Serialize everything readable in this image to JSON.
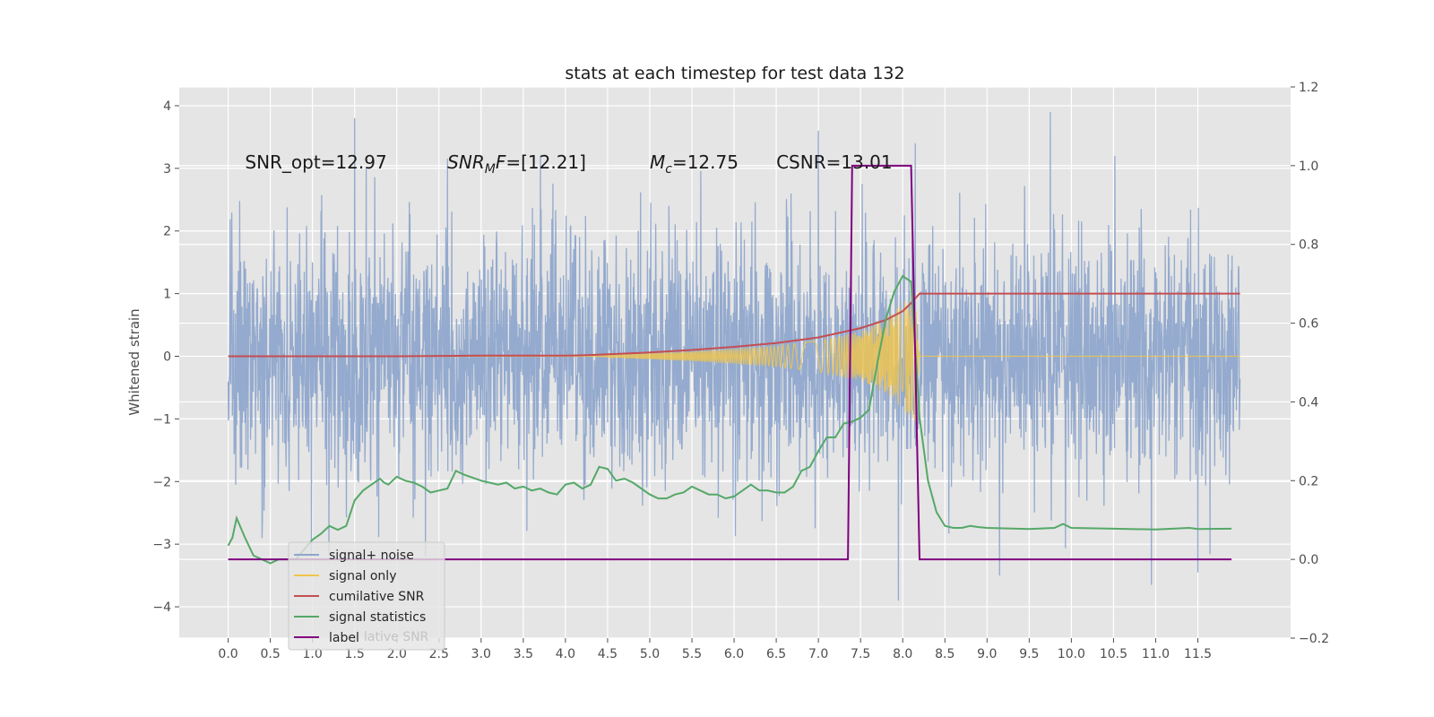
{
  "chart_data": {
    "type": "line",
    "title": "stats at each timestep for test data 132",
    "ylabel_left": "Whitened strain",
    "xlim": [
      -0.58,
      12.6
    ],
    "ylim_left": [
      -4.5,
      4.3
    ],
    "ylim_right": [
      -0.2,
      1.2
    ],
    "grid": true,
    "x_ticks": [
      0.0,
      0.5,
      1.0,
      1.5,
      2.0,
      2.5,
      3.0,
      3.5,
      4.0,
      4.5,
      5.0,
      5.5,
      6.0,
      6.5,
      7.0,
      7.5,
      8.0,
      8.5,
      9.0,
      9.5,
      10.0,
      10.5,
      11.0,
      11.5
    ],
    "x_tick_labels": [
      "0.0",
      "0.5",
      "1.0",
      "1.5",
      "2.0",
      "2.5",
      "3.0",
      "3.5",
      "4.0",
      "4.5",
      "5.0",
      "5.5",
      "6.0",
      "6.5",
      "7.0",
      "7.5",
      "8.0",
      "8.5",
      "9.0",
      "9.5",
      "10.0",
      "10.5",
      "11.0",
      "11.5"
    ],
    "y_left_ticks": [
      -4,
      -3,
      -2,
      -1,
      0,
      1,
      2,
      3,
      4
    ],
    "y_left_tick_labels": [
      "−4",
      "−3",
      "−2",
      "−1",
      "0",
      "1",
      "2",
      "3",
      "4"
    ],
    "y_right_ticks": [
      -0.2,
      0.0,
      0.2,
      0.4,
      0.6,
      0.8,
      1.0,
      1.2
    ],
    "y_right_tick_labels": [
      "−0.2",
      "0.0",
      "0.2",
      "0.4",
      "0.6",
      "0.8",
      "1.0",
      "1.2"
    ],
    "annotations": [
      "SNR_opt=12.97",
      "SNR_MF=[12.21]",
      "M_c=12.75",
      "CSNR=13.01"
    ],
    "annotation_x": [
      0.2,
      2.6,
      5.0,
      6.5
    ],
    "annotation_y": 3.1,
    "legend_position": "lower-left",
    "legend": [
      "signal+ noise",
      "signal only",
      "cumilative SNR",
      "signal statistics",
      "label"
    ],
    "legend_hidden_text": "lative SNR",
    "series": [
      {
        "name": "signal+ noise",
        "axis": "left",
        "color": "#8fa6cc",
        "x_range": [
          0.0,
          12.0
        ],
        "sample_spacing": 0.00390625,
        "envelope_typical": [
          -1.8,
          1.8
        ],
        "extreme_peaks": [
          {
            "x": 1.5,
            "y": 3.8
          },
          {
            "x": 7.0,
            "y": 3.6
          },
          {
            "x": 8.15,
            "y": 3.4
          },
          {
            "x": 9.75,
            "y": 3.9
          },
          {
            "x": 7.95,
            "y": -3.9
          },
          {
            "x": 10.95,
            "y": -3.65
          },
          {
            "x": 11.5,
            "y": -3.45
          },
          {
            "x": 9.15,
            "y": -3.5
          }
        ]
      },
      {
        "name": "signal only",
        "axis": "left",
        "color": "#f1c54b",
        "chirp": {
          "x_start": 4.3,
          "x_merger": 8.2,
          "envelope": [
            [
              4.3,
              0.0
            ],
            [
              5.0,
              0.05
            ],
            [
              5.5,
              0.08
            ],
            [
              6.0,
              0.12
            ],
            [
              6.5,
              0.17
            ],
            [
              7.0,
              0.25
            ],
            [
              7.5,
              0.4
            ],
            [
              7.8,
              0.6
            ],
            [
              8.0,
              0.85
            ],
            [
              8.15,
              1.05
            ],
            [
              8.2,
              0.05
            ],
            [
              12.0,
              0.0
            ]
          ]
        }
      },
      {
        "name": "cumilative SNR",
        "axis": "left",
        "color": "#c44e52",
        "x": [
          0.0,
          1.0,
          2.0,
          3.0,
          4.0,
          4.3,
          5.0,
          5.5,
          6.0,
          6.5,
          7.0,
          7.5,
          7.8,
          8.0,
          8.1,
          8.2,
          12.0
        ],
        "y": [
          0.0,
          0.0,
          0.0,
          0.01,
          0.01,
          0.02,
          0.06,
          0.1,
          0.15,
          0.21,
          0.3,
          0.45,
          0.58,
          0.72,
          0.85,
          1.0,
          1.0
        ]
      },
      {
        "name": "signal statistics",
        "axis": "right",
        "color": "#55a868",
        "x": [
          0.0,
          0.05,
          0.1,
          0.2,
          0.3,
          0.4,
          0.5,
          0.6,
          0.8,
          1.0,
          1.1,
          1.2,
          1.3,
          1.4,
          1.5,
          1.6,
          1.7,
          1.8,
          1.85,
          1.9,
          2.0,
          2.1,
          2.2,
          2.3,
          2.4,
          2.5,
          2.6,
          2.7,
          2.8,
          3.0,
          3.1,
          3.2,
          3.3,
          3.4,
          3.5,
          3.6,
          3.7,
          3.8,
          3.9,
          4.0,
          4.1,
          4.2,
          4.3,
          4.4,
          4.5,
          4.6,
          4.7,
          4.8,
          5.0,
          5.1,
          5.2,
          5.3,
          5.4,
          5.5,
          5.6,
          5.7,
          5.8,
          5.9,
          6.0,
          6.1,
          6.2,
          6.3,
          6.4,
          6.5,
          6.6,
          6.7,
          6.8,
          6.9,
          7.0,
          7.1,
          7.2,
          7.3,
          7.4,
          7.5,
          7.6,
          7.7,
          7.8,
          7.9,
          8.0,
          8.1,
          8.2,
          8.3,
          8.4,
          8.5,
          8.6,
          8.7,
          8.8,
          8.9,
          9.0,
          9.5,
          9.8,
          9.9,
          10.0,
          10.5,
          11.0,
          11.4,
          11.5,
          11.9
        ],
        "y": [
          0.035,
          0.055,
          0.105,
          0.055,
          0.01,
          0.0,
          -0.01,
          0.0,
          0.0,
          0.05,
          0.065,
          0.085,
          0.075,
          0.085,
          0.15,
          0.175,
          0.19,
          0.205,
          0.195,
          0.19,
          0.21,
          0.2,
          0.195,
          0.185,
          0.17,
          0.175,
          0.18,
          0.225,
          0.215,
          0.2,
          0.195,
          0.19,
          0.195,
          0.18,
          0.185,
          0.175,
          0.18,
          0.17,
          0.165,
          0.19,
          0.195,
          0.18,
          0.19,
          0.235,
          0.23,
          0.2,
          0.205,
          0.195,
          0.165,
          0.155,
          0.155,
          0.165,
          0.17,
          0.185,
          0.175,
          0.165,
          0.165,
          0.155,
          0.16,
          0.175,
          0.19,
          0.175,
          0.175,
          0.17,
          0.17,
          0.185,
          0.225,
          0.235,
          0.275,
          0.31,
          0.31,
          0.345,
          0.35,
          0.36,
          0.38,
          0.5,
          0.61,
          0.68,
          0.72,
          0.705,
          0.36,
          0.2,
          0.12,
          0.085,
          0.08,
          0.08,
          0.085,
          0.082,
          0.08,
          0.077,
          0.08,
          0.09,
          0.08,
          0.078,
          0.076,
          0.08,
          0.077,
          0.078
        ]
      },
      {
        "name": "label",
        "axis": "right",
        "color": "#800080",
        "x": [
          0.0,
          7.35,
          7.4,
          8.1,
          8.2,
          11.9
        ],
        "y": [
          0.0,
          0.0,
          1.0,
          1.0,
          0.0,
          0.0
        ]
      }
    ]
  }
}
